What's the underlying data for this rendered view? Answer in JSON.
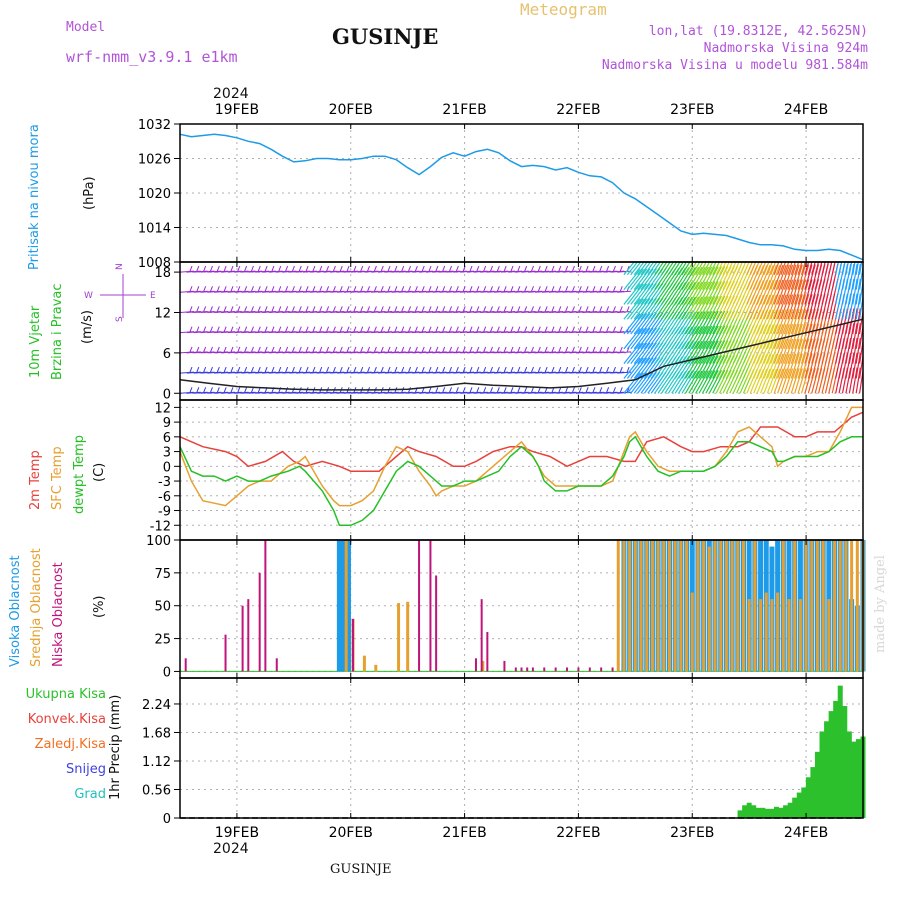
{
  "header": {
    "model_label": "Model",
    "model_name": "wrf-nmm_v3.9.1 e1km",
    "station": "GUSINJE",
    "meteogram": "Meteogram",
    "lonlat": "lon,lat (19.8312E, 42.5625N)",
    "elevation": "Nadmorska Visina 924m",
    "model_elevation": "Nadmorska Visina u modelu 981.584m",
    "year": "2024"
  },
  "footer": {
    "station": "GUSINJE",
    "year": "2024",
    "madeby": "made by Angel"
  },
  "days": [
    "19FEB",
    "20FEB",
    "21FEB",
    "22FEB",
    "23FEB",
    "24FEB"
  ],
  "colors": {
    "pressure": "#1e9be8",
    "temp2m": "#e8413c",
    "sfc": "#e6a030",
    "dew": "#26c026",
    "high": "#1e9be8",
    "mid": "#e6a030",
    "low": "#c0147c",
    "total": "#2cc02c",
    "conv": "#e8413c",
    "frz": "#f07020",
    "snow": "#4040e0",
    "hail": "#20c0c0"
  },
  "panels": {
    "pressure": {
      "label": "Pritisak na nivou mora",
      "unit": "(hPa)"
    },
    "wind": {
      "label1": "10m Vjetar",
      "label2": "Brzina i Pravac",
      "unit": "(m/s)",
      "compass_n": "N",
      "compass_s": "S",
      "compass_w": "W",
      "compass_e": "E"
    },
    "temp": {
      "label1": "2m Temp",
      "label2": "SFC Temp",
      "label3": "dewpt Temp",
      "unit": "(C)"
    },
    "cloud": {
      "label1": "Visoka Oblacnost",
      "label2": "Srednja Oblacnost",
      "label3": "Niska Oblacnost",
      "unit": "(%)"
    },
    "precip": {
      "label": "1hr Precip (mm)",
      "legend": [
        "Ukupna Kisa",
        "Konvek.Kisa",
        "Zaledj.Kisa",
        "Snijeg",
        "Grad"
      ]
    }
  },
  "chart_data": [
    {
      "type": "line",
      "title": "Pritisak na nivou mora",
      "ylabel": "(hPa)",
      "x_unit": "days from 19FEB 00UTC",
      "xlim": [
        -0.5,
        5.5
      ],
      "ylim": [
        1008,
        1032
      ],
      "yticks": [
        1008,
        1014,
        1020,
        1026,
        1032
      ],
      "grid": true,
      "series": [
        {
          "name": "Pritisak na nivou mora",
          "x": [
            -0.5,
            -0.4,
            -0.3,
            -0.2,
            -0.1,
            0.0,
            0.1,
            0.2,
            0.3,
            0.4,
            0.5,
            0.6,
            0.7,
            0.8,
            0.9,
            1.0,
            1.1,
            1.2,
            1.3,
            1.4,
            1.5,
            1.6,
            1.7,
            1.8,
            1.9,
            2.0,
            2.1,
            2.2,
            2.3,
            2.4,
            2.5,
            2.6,
            2.7,
            2.8,
            2.9,
            3.0,
            3.1,
            3.2,
            3.3,
            3.4,
            3.5,
            3.6,
            3.7,
            3.8,
            3.9,
            4.0,
            4.1,
            4.2,
            4.3,
            4.4,
            4.5,
            4.6,
            4.7,
            4.8,
            4.9,
            5.0,
            5.1,
            5.2,
            5.3,
            5.4,
            5.5
          ],
          "values": [
            1030.2,
            1029.8,
            1030.0,
            1030.2,
            1030.0,
            1029.6,
            1029.0,
            1028.6,
            1027.6,
            1026.4,
            1025.4,
            1025.6,
            1026.0,
            1026.0,
            1025.8,
            1025.8,
            1026.0,
            1026.4,
            1026.4,
            1025.8,
            1024.4,
            1023.2,
            1024.6,
            1026.2,
            1027.0,
            1026.4,
            1027.2,
            1027.6,
            1027.0,
            1025.6,
            1024.6,
            1024.8,
            1024.6,
            1024.0,
            1024.4,
            1023.6,
            1023.0,
            1022.8,
            1021.8,
            1020.0,
            1019.0,
            1017.6,
            1016.2,
            1014.8,
            1013.4,
            1012.8,
            1013.0,
            1012.8,
            1012.6,
            1012.0,
            1011.4,
            1011.0,
            1011.0,
            1010.8,
            1010.2,
            1010.0,
            1010.0,
            1010.2,
            1010.0,
            1009.2,
            1008.4
          ]
        }
      ]
    },
    {
      "type": "line",
      "title": "10m Vjetar Brzina i Pravac",
      "ylabel": "(m/s)",
      "x_unit": "days from 19FEB 00UTC",
      "xlim": [
        -0.5,
        5.5
      ],
      "ylim": [
        -1,
        19.5
      ],
      "yticks": [
        0,
        6,
        12,
        18
      ],
      "grid": true,
      "series": [
        {
          "name": "10m wind speed",
          "x": [
            -0.5,
            -0.25,
            0.0,
            0.25,
            0.5,
            0.75,
            1.0,
            1.25,
            1.5,
            1.75,
            2.0,
            2.25,
            2.5,
            2.75,
            3.0,
            3.25,
            3.5,
            3.75,
            4.0,
            4.25,
            4.5,
            4.75,
            5.0,
            5.25,
            5.5
          ],
          "values": [
            2.0,
            1.5,
            1.0,
            0.8,
            0.6,
            0.5,
            0.5,
            0.5,
            0.6,
            1.0,
            1.5,
            1.2,
            1.0,
            0.8,
            1.0,
            1.5,
            2.0,
            4.0,
            5.0,
            6.0,
            7.0,
            8.0,
            9.0,
            10.0,
            11.0
          ]
        }
      ]
    },
    {
      "type": "line",
      "title": "2m Temp / SFC Temp / dewpt Temp",
      "ylabel": "(C)",
      "x_unit": "days from 19FEB 00UTC",
      "xlim": [
        -0.5,
        5.5
      ],
      "ylim": [
        -15,
        13.5
      ],
      "yticks": [
        -12,
        -9,
        -6,
        -3,
        0,
        3,
        6,
        9,
        12
      ],
      "grid": true,
      "series": [
        {
          "name": "2m Temp",
          "x": [
            -0.5,
            -0.3,
            -0.1,
            0.0,
            0.1,
            0.25,
            0.4,
            0.5,
            0.6,
            0.75,
            0.9,
            1.0,
            1.1,
            1.25,
            1.4,
            1.5,
            1.6,
            1.75,
            1.9,
            2.0,
            2.1,
            2.25,
            2.4,
            2.5,
            2.6,
            2.75,
            2.9,
            3.0,
            3.1,
            3.25,
            3.4,
            3.5,
            3.6,
            3.75,
            3.9,
            4.0,
            4.1,
            4.25,
            4.4,
            4.5,
            4.6,
            4.75,
            4.9,
            5.0,
            5.1,
            5.25,
            5.4,
            5.5
          ],
          "values": [
            6,
            4,
            3,
            2,
            0,
            1,
            3,
            1,
            0,
            1,
            0,
            -1,
            -1,
            -1,
            2,
            4,
            3,
            2,
            0,
            0,
            1,
            3,
            4,
            4,
            3,
            2,
            0,
            1,
            2,
            2,
            1,
            1,
            5,
            6,
            4,
            3,
            3,
            4,
            4,
            5,
            8,
            8,
            6,
            6,
            7,
            7,
            10,
            11
          ]
        },
        {
          "name": "SFC Temp",
          "x": [
            -0.5,
            -0.4,
            -0.3,
            -0.2,
            -0.1,
            0.0,
            0.1,
            0.2,
            0.3,
            0.45,
            0.55,
            0.6,
            0.75,
            0.85,
            0.9,
            1.0,
            1.1,
            1.2,
            1.3,
            1.4,
            1.5,
            1.6,
            1.7,
            1.75,
            1.8,
            1.9,
            2.0,
            2.1,
            2.2,
            2.3,
            2.4,
            2.5,
            2.6,
            2.65,
            2.7,
            2.8,
            2.9,
            3.0,
            3.1,
            3.2,
            3.3,
            3.4,
            3.45,
            3.5,
            3.6,
            3.7,
            3.8,
            3.9,
            4.0,
            4.1,
            4.2,
            4.3,
            4.4,
            4.5,
            4.6,
            4.7,
            4.75,
            4.8,
            4.9,
            5.0,
            5.1,
            5.2,
            5.3,
            5.4,
            5.5
          ],
          "values": [
            3,
            -3,
            -7,
            -7.5,
            -8,
            -6,
            -4,
            -3,
            -3,
            0,
            1,
            2,
            -4,
            -7,
            -8,
            -8,
            -7,
            -5,
            0,
            4,
            3,
            -1,
            -4,
            -6,
            -5,
            -4,
            -4,
            -3,
            -1,
            1,
            3,
            5,
            2,
            0,
            -2,
            -4,
            -4,
            -4,
            -4,
            -4,
            -3,
            3,
            6,
            7,
            3,
            0,
            -1,
            -1,
            -1,
            -1,
            0,
            3,
            7,
            8,
            6,
            4,
            0,
            1,
            2,
            2,
            3,
            3,
            7,
            12,
            12
          ]
        },
        {
          "name": "dewpt Temp",
          "x": [
            -0.5,
            -0.4,
            -0.3,
            -0.2,
            -0.1,
            0.0,
            0.1,
            0.2,
            0.3,
            0.45,
            0.55,
            0.6,
            0.75,
            0.85,
            0.9,
            1.0,
            1.1,
            1.2,
            1.3,
            1.4,
            1.5,
            1.6,
            1.7,
            1.75,
            1.8,
            1.9,
            2.0,
            2.1,
            2.2,
            2.3,
            2.4,
            2.5,
            2.6,
            2.65,
            2.7,
            2.8,
            2.9,
            3.0,
            3.1,
            3.2,
            3.3,
            3.4,
            3.45,
            3.5,
            3.6,
            3.7,
            3.8,
            3.9,
            4.0,
            4.1,
            4.2,
            4.3,
            4.4,
            4.5,
            4.6,
            4.7,
            4.75,
            4.8,
            4.9,
            5.0,
            5.1,
            5.2,
            5.3,
            5.4,
            5.5
          ],
          "values": [
            4,
            -1,
            -2,
            -2,
            -3,
            -2,
            -3,
            -3,
            -2,
            -1,
            0,
            -1,
            -5,
            -9,
            -12,
            -12,
            -11,
            -9,
            -5,
            -1,
            1,
            0,
            -2,
            -3,
            -4,
            -4,
            -3,
            -3,
            -2,
            -1,
            2,
            4,
            2,
            0,
            -3,
            -5,
            -5,
            -4,
            -4,
            -4,
            -2,
            2,
            5,
            6,
            2,
            -1,
            -2,
            -1,
            -1,
            -1,
            0,
            2,
            5,
            5,
            4,
            3,
            1,
            1,
            2,
            2,
            2,
            3,
            5,
            6,
            6
          ]
        }
      ]
    },
    {
      "type": "bar",
      "title": "Oblacnost",
      "ylabel": "(%)",
      "x_unit": "days from 19FEB 00UTC",
      "xlim": [
        -0.5,
        5.5
      ],
      "ylim": [
        -5,
        100
      ],
      "yticks": [
        0,
        25,
        50,
        75,
        100
      ],
      "grid": true,
      "series": [
        {
          "name": "Visoka Oblacnost",
          "x": [
            0.9,
            0.92,
            0.94,
            0.96,
            0.98,
            3.4,
            3.45,
            3.5,
            3.55,
            3.6,
            3.65,
            3.7,
            3.75,
            3.8,
            3.85,
            3.9,
            3.95,
            4.0,
            4.05,
            4.1,
            4.15,
            4.2,
            4.25,
            4.3,
            4.35,
            4.4,
            4.45,
            4.5,
            4.55,
            4.6,
            4.65,
            4.7,
            4.75,
            4.8,
            4.85,
            4.9,
            4.95,
            5.0,
            5.05,
            5.1,
            5.15,
            5.2,
            5.25,
            5.3,
            5.35,
            5.4,
            5.45,
            5.5
          ],
          "values": [
            100,
            100,
            98,
            100,
            100,
            100,
            100,
            100,
            100,
            100,
            100,
            100,
            100,
            100,
            100,
            100,
            100,
            100,
            100,
            100,
            100,
            100,
            100,
            100,
            100,
            100,
            100,
            100,
            100,
            100,
            100,
            95,
            100,
            100,
            100,
            100,
            100,
            100,
            100,
            100,
            100,
            100,
            100,
            100,
            100,
            55,
            50,
            100
          ]
        },
        {
          "name": "Srednja Oblacnost",
          "x": [
            0.96,
            1.02,
            1.12,
            1.22,
            1.42,
            1.5,
            2.16,
            3.35,
            3.4,
            3.45,
            3.5,
            3.55,
            3.6,
            3.65,
            3.7,
            3.75,
            3.8,
            3.85,
            3.9,
            3.95,
            4.0,
            4.05,
            4.1,
            4.15,
            4.2,
            4.25,
            4.3,
            4.35,
            4.4,
            4.45,
            4.5,
            4.55,
            4.6,
            4.65,
            4.7,
            4.75,
            4.8,
            4.85,
            4.9,
            4.95,
            5.0,
            5.05,
            5.1,
            5.15,
            5.2,
            5.25,
            5.3,
            5.35,
            5.4,
            5.45,
            5.5
          ],
          "values": [
            100,
            40,
            12,
            5,
            52,
            53,
            8,
            100,
            100,
            100,
            100,
            100,
            100,
            100,
            100,
            100,
            100,
            100,
            100,
            100,
            60,
            100,
            100,
            95,
            100,
            100,
            100,
            100,
            100,
            100,
            55,
            100,
            55,
            60,
            55,
            60,
            100,
            55,
            100,
            55,
            100,
            100,
            100,
            100,
            55,
            100,
            100,
            100,
            100,
            100,
            100
          ]
        },
        {
          "name": "Niska Oblacnost",
          "x": [
            -0.45,
            -0.1,
            0.05,
            0.1,
            0.2,
            0.25,
            0.35,
            1.02,
            1.6,
            1.7,
            1.75,
            2.1,
            2.15,
            2.2,
            2.35,
            2.45,
            2.5,
            2.55,
            2.6,
            2.7,
            2.8,
            2.9,
            3.0,
            3.1,
            3.2,
            3.3
          ],
          "values": [
            10,
            28,
            50,
            55,
            75,
            100,
            10,
            40,
            100,
            100,
            73,
            10,
            55,
            30,
            8,
            3,
            3,
            3,
            3,
            3,
            3,
            3,
            3,
            3,
            3,
            3
          ]
        }
      ]
    },
    {
      "type": "bar",
      "title": "1hr Precip",
      "ylabel": "1hr Precip (mm)",
      "x_unit": "days from 19FEB 00UTC",
      "xlim": [
        -0.5,
        5.5
      ],
      "ylim": [
        0,
        2.75
      ],
      "yticks": [
        0,
        0.56,
        1.12,
        1.68,
        2.24
      ],
      "grid": true,
      "series": [
        {
          "name": "Ukupna Kisa",
          "x": [
            4.42,
            4.46,
            4.5,
            4.54,
            4.58,
            4.62,
            4.66,
            4.7,
            4.74,
            4.78,
            4.82,
            4.86,
            4.9,
            4.94,
            4.98,
            5.02,
            5.06,
            5.1,
            5.14,
            5.18,
            5.22,
            5.26,
            5.3,
            5.34,
            5.38,
            5.42,
            5.46,
            5.5
          ],
          "values": [
            0.15,
            0.25,
            0.3,
            0.25,
            0.2,
            0.2,
            0.18,
            0.18,
            0.22,
            0.2,
            0.25,
            0.3,
            0.4,
            0.5,
            0.6,
            0.8,
            1.0,
            1.3,
            1.7,
            1.9,
            2.1,
            2.3,
            2.6,
            2.2,
            1.7,
            1.5,
            1.55,
            1.6
          ]
        },
        {
          "name": "Konvek.Kisa",
          "values": []
        },
        {
          "name": "Zaledj.Kisa",
          "values": []
        },
        {
          "name": "Snijeg",
          "values": []
        },
        {
          "name": "Grad",
          "values": []
        }
      ]
    }
  ]
}
